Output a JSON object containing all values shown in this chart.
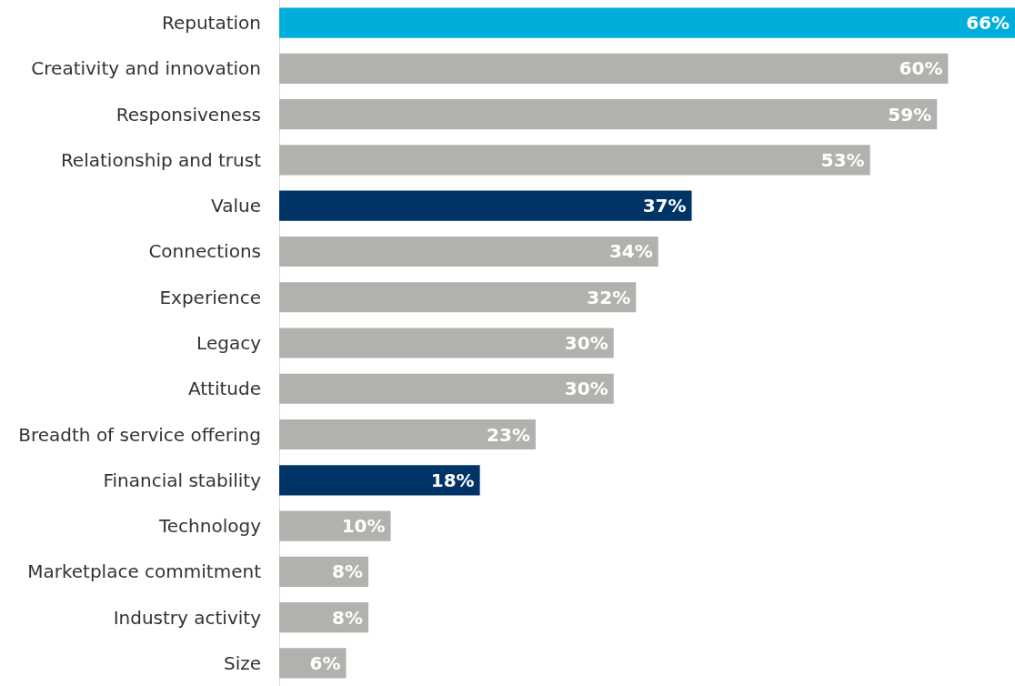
{
  "chart_data": {
    "type": "bar",
    "orientation": "horizontal",
    "categories": [
      "Reputation",
      "Creativity and innovation",
      "Responsiveness",
      "Relationship and trust",
      "Value",
      "Connections",
      "Experience",
      "Legacy",
      "Attitude",
      "Breadth of service offering",
      "Financial stability",
      "Technology",
      "Marketplace commitment",
      "Industry activity",
      "Size"
    ],
    "values": [
      66,
      60,
      59,
      53,
      37,
      34,
      32,
      30,
      30,
      23,
      18,
      10,
      8,
      8,
      6
    ],
    "value_labels": [
      "66%",
      "60%",
      "59%",
      "53%",
      "37%",
      "34%",
      "32%",
      "30%",
      "30%",
      "23%",
      "18%",
      "10%",
      "8%",
      "8%",
      "6%"
    ],
    "colors": [
      "#00aedb",
      "#b1b1ad",
      "#b1b1ad",
      "#b1b1ad",
      "#003366",
      "#b1b1ad",
      "#b1b1ad",
      "#b1b1ad",
      "#b1b1ad",
      "#b1b1ad",
      "#003366",
      "#b1b1ad",
      "#b1b1ad",
      "#b1b1ad",
      "#b1b1ad"
    ]
  }
}
